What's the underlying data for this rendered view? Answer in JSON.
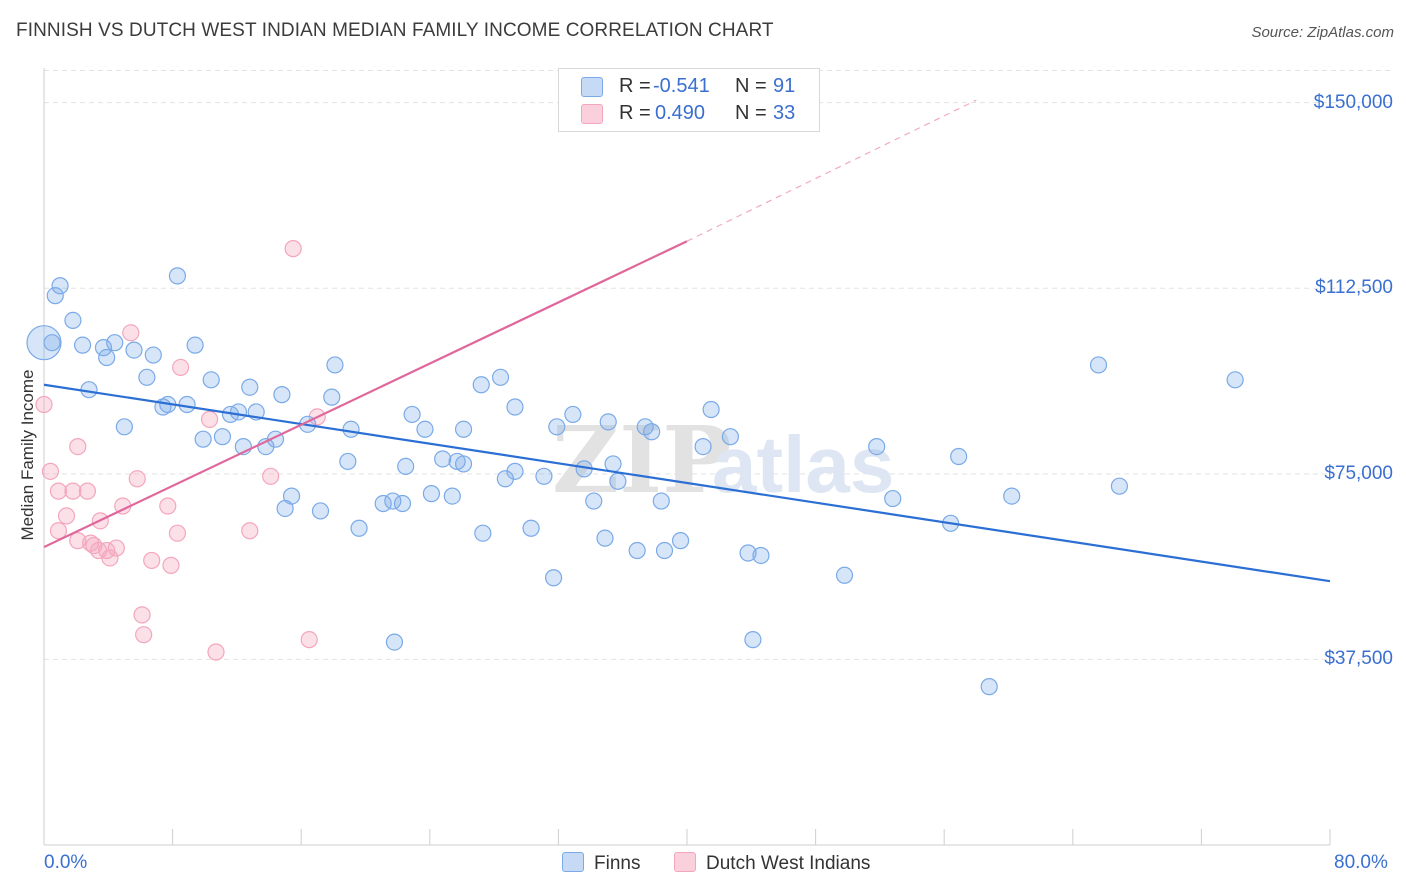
{
  "title": "FINNISH VS DUTCH WEST INDIAN MEDIAN FAMILY INCOME CORRELATION CHART",
  "source": "Source: ZipAtlas.com",
  "watermark": {
    "zip": "ZIP",
    "atlas": "atlas"
  },
  "legend": {
    "rows": [
      {
        "r_label": "R =",
        "r_value": "-0.541",
        "n_label": "N =",
        "n_value": "91",
        "color": "#7aaae8"
      },
      {
        "r_label": "R =",
        "r_value": "0.490",
        "n_label": "N =",
        "n_value": "33",
        "color": "#f3a6bd"
      }
    ]
  },
  "chart_data": {
    "type": "scatter",
    "title": "FINNISH VS DUTCH WEST INDIAN MEDIAN FAMILY INCOME CORRELATION CHART",
    "xlabel": "",
    "ylabel": "Median Family Income",
    "xlim": [
      0,
      80
    ],
    "ylim": [
      0,
      157000
    ],
    "x_tick_labels": [
      "0.0%",
      "80.0%"
    ],
    "y_ticks": [
      37500,
      75000,
      112500,
      150000
    ],
    "y_tick_labels": [
      "$37,500",
      "$75,000",
      "$112,500",
      "$150,000"
    ],
    "grid": "horizontal dashed",
    "legend_position": "top-center",
    "series": [
      {
        "name": "Finns",
        "color": "#7aaae8",
        "line_color": "#2b6fd4",
        "trend": {
          "x": [
            0,
            80
          ],
          "y": [
            93000,
            53300
          ]
        },
        "points": [
          [
            1.0,
            113000
          ],
          [
            0.7,
            111000
          ],
          [
            1.8,
            106000
          ],
          [
            8.3,
            115000
          ],
          [
            0.0,
            101500
          ],
          [
            2.4,
            101000
          ],
          [
            4.4,
            101500
          ],
          [
            3.7,
            100500
          ],
          [
            5.6,
            100000
          ],
          [
            3.9,
            98500
          ],
          [
            6.8,
            99000
          ],
          [
            9.4,
            101000
          ],
          [
            18.1,
            97000
          ],
          [
            65.6,
            97000
          ],
          [
            74.1,
            94000
          ],
          [
            2.8,
            92000
          ],
          [
            6.4,
            94500
          ],
          [
            10.4,
            94000
          ],
          [
            12.8,
            92500
          ],
          [
            27.2,
            93000
          ],
          [
            28.4,
            94500
          ],
          [
            14.8,
            91000
          ],
          [
            17.9,
            90500
          ],
          [
            7.4,
            88500
          ],
          [
            7.7,
            89000
          ],
          [
            8.9,
            89000
          ],
          [
            11.6,
            87000
          ],
          [
            12.1,
            87500
          ],
          [
            13.2,
            87500
          ],
          [
            22.9,
            87000
          ],
          [
            29.3,
            88500
          ],
          [
            32.9,
            87000
          ],
          [
            41.5,
            88000
          ],
          [
            5.0,
            84500
          ],
          [
            9.9,
            82000
          ],
          [
            11.1,
            82500
          ],
          [
            14.4,
            82000
          ],
          [
            16.4,
            85000
          ],
          [
            19.1,
            84000
          ],
          [
            23.7,
            84000
          ],
          [
            26.1,
            84000
          ],
          [
            31.9,
            84500
          ],
          [
            37.4,
            84500
          ],
          [
            37.8,
            83500
          ],
          [
            12.4,
            80500
          ],
          [
            13.8,
            80500
          ],
          [
            41.0,
            80500
          ],
          [
            42.7,
            82500
          ],
          [
            51.8,
            80500
          ],
          [
            56.9,
            78500
          ],
          [
            18.9,
            77500
          ],
          [
            22.5,
            76500
          ],
          [
            24.8,
            78000
          ],
          [
            25.7,
            77500
          ],
          [
            26.1,
            77000
          ],
          [
            28.7,
            74000
          ],
          [
            29.3,
            75500
          ],
          [
            31.1,
            74500
          ],
          [
            33.6,
            76000
          ],
          [
            35.4,
            77000
          ],
          [
            35.7,
            73500
          ],
          [
            66.9,
            72500
          ],
          [
            15.4,
            70500
          ],
          [
            21.1,
            69000
          ],
          [
            21.7,
            69500
          ],
          [
            22.3,
            69000
          ],
          [
            24.1,
            71000
          ],
          [
            25.4,
            70500
          ],
          [
            34.2,
            69500
          ],
          [
            38.4,
            69500
          ],
          [
            52.8,
            70000
          ],
          [
            60.2,
            70500
          ],
          [
            15.0,
            68000
          ],
          [
            17.2,
            67500
          ],
          [
            19.6,
            64000
          ],
          [
            27.3,
            63000
          ],
          [
            30.3,
            64000
          ],
          [
            34.9,
            62000
          ],
          [
            36.9,
            59500
          ],
          [
            38.6,
            59500
          ],
          [
            39.6,
            61500
          ],
          [
            43.8,
            59000
          ],
          [
            44.6,
            58500
          ],
          [
            56.4,
            65000
          ],
          [
            31.7,
            54000
          ],
          [
            49.8,
            54500
          ],
          [
            21.8,
            41000
          ],
          [
            44.1,
            41500
          ],
          [
            58.8,
            32000
          ],
          [
            0.5,
            101500
          ],
          [
            35.1,
            85500
          ]
        ]
      },
      {
        "name": "Dutch West Indians",
        "color": "#f3a6bd",
        "line_color": "#e0679a",
        "trend": {
          "x": [
            0,
            40
          ],
          "y": [
            60200,
            122000
          ]
        },
        "trend_extension": {
          "x": [
            40,
            58
          ],
          "y": [
            122000,
            150500
          ]
        },
        "points": [
          [
            15.5,
            120500
          ],
          [
            5.4,
            103500
          ],
          [
            8.5,
            96500
          ],
          [
            0.0,
            89000
          ],
          [
            10.3,
            86000
          ],
          [
            17.0,
            86500
          ],
          [
            2.1,
            80500
          ],
          [
            0.4,
            75500
          ],
          [
            5.8,
            74000
          ],
          [
            14.1,
            74500
          ],
          [
            0.9,
            71500
          ],
          [
            1.8,
            71500
          ],
          [
            2.7,
            71500
          ],
          [
            4.9,
            68500
          ],
          [
            7.7,
            68500
          ],
          [
            1.4,
            66500
          ],
          [
            3.5,
            65500
          ],
          [
            0.9,
            63500
          ],
          [
            8.3,
            63000
          ],
          [
            12.8,
            63500
          ],
          [
            2.1,
            61500
          ],
          [
            3.1,
            60500
          ],
          [
            3.4,
            59500
          ],
          [
            3.9,
            59500
          ],
          [
            4.1,
            58000
          ],
          [
            6.7,
            57500
          ],
          [
            7.9,
            56500
          ],
          [
            6.1,
            46500
          ],
          [
            6.2,
            42500
          ],
          [
            10.7,
            39000
          ],
          [
            16.5,
            41500
          ],
          [
            4.5,
            60000
          ],
          [
            2.9,
            61000
          ]
        ]
      }
    ]
  },
  "bottom_legend": [
    {
      "label": "Finns",
      "color": "#7aaae8"
    },
    {
      "label": "Dutch West Indians",
      "color": "#f3a6bd"
    }
  ]
}
